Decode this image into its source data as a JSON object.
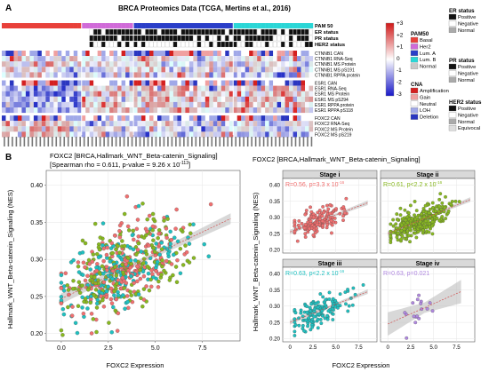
{
  "panel_a": {
    "label": "A",
    "title": "BRCA Proteomics Data (TCGA, Mertins et al., 2016)",
    "track_labels": [
      "PAM 50",
      "ER status",
      "PR status",
      "HER2 status"
    ],
    "row_labels": [
      "CTNNB1 CAN",
      "CTNNB1 RNA-Seq",
      "CTNNB1 MS Protein",
      "CTNNB1 MS pS191",
      "CTNNB1 RPPA protein",
      "ESR1 CAN",
      "ESR1 RNA-Seq",
      "ESR1 MS Protein",
      "ESR1 MS pS294",
      "ESR1 RPPA protein",
      "ESR1 RPPA pS118",
      "FOXC2 CAN",
      "FOXC2 RNA-Seq",
      "FOXC2 MS Protein",
      "FOXC2 MS pS219"
    ],
    "colorbar_ticks": [
      "+3",
      "+2",
      "+1",
      "0",
      "-1",
      "-2",
      "-3"
    ],
    "legends": {
      "pam50": {
        "title": "PAM50",
        "items": [
          {
            "label": "Basal",
            "color": "#e8403a"
          },
          {
            "label": "Her2",
            "color": "#d06ad8"
          },
          {
            "label": "Lum. A",
            "color": "#2a3ec8"
          },
          {
            "label": "Lum. B",
            "color": "#2ad6d6"
          },
          {
            "label": "Normal",
            "color": "#c8c8c8"
          }
        ]
      },
      "cna": {
        "title": "CNA",
        "items": [
          {
            "label": "Amplification",
            "color": "#d42020"
          },
          {
            "label": "Gain",
            "color": "#f0a0a0"
          },
          {
            "label": "Neutral",
            "color": "#ffffff"
          },
          {
            "label": "LOH",
            "color": "#a0a8e8"
          },
          {
            "label": "Deletion",
            "color": "#2a36c0"
          }
        ]
      },
      "er": {
        "title": "ER status",
        "items": [
          {
            "label": "Positive",
            "color": "#111111"
          },
          {
            "label": "Negative",
            "color": "#ffffff"
          },
          {
            "label": "Normal",
            "color": "#aaaaaa"
          }
        ]
      },
      "pr": {
        "title": "PR status",
        "items": [
          {
            "label": "Positive",
            "color": "#111111"
          },
          {
            "label": "Negative",
            "color": "#ffffff"
          },
          {
            "label": "Normal",
            "color": "#aaaaaa"
          }
        ]
      },
      "her2": {
        "title": "HER2 status",
        "items": [
          {
            "label": "Positive",
            "color": "#111111"
          },
          {
            "label": "Negative",
            "color": "#ffffff"
          },
          {
            "label": "Normal",
            "color": "#aaaaaa"
          },
          {
            "label": "Equivocal",
            "color": "#dddddd"
          }
        ]
      }
    }
  },
  "panel_b": {
    "label": "B",
    "left_title": "FOXC2 [BRCA,Hallmark_WNT_Beta-catenin_Signaling]",
    "left_subtitle": "[Spearman rho = 0.611, p-value = 9.26 x 10",
    "left_subtitle_exp": "-113",
    "left_subtitle_end": "]",
    "right_title": "FOXC2 [BRCA,Hallmark_WNT_Beta-catenin_Signaling]",
    "ylabel": "Hallmark_WNT_Beta-catenin_Signaling (NES)",
    "xlabel": "FOXC2 Expression",
    "left_yticks": [
      "0.20",
      "0.25",
      "0.30",
      "0.35",
      "0.40"
    ],
    "left_xticks": [
      "0.0",
      "2.5",
      "5.0",
      "7.5"
    ],
    "right_yticks": [
      "0.20",
      "0.25",
      "0.30",
      "0.35",
      "0.40"
    ],
    "right_xticks": [
      "0",
      "2.5",
      "5.0",
      "7.5"
    ],
    "stages": [
      {
        "title": "Stage i",
        "stat": "R=0.56, p=3.3 x 10",
        "exp": "-16",
        "color": "#f07070"
      },
      {
        "title": "Stage ii",
        "stat": "R=0.61, p<2.2 x 10",
        "exp": "-16",
        "color": "#88b820"
      },
      {
        "title": "Stage iii",
        "stat": "R=0.63, p<2.2 x 10",
        "exp": "-16",
        "color": "#20c0c0"
      },
      {
        "title": "Stage iv",
        "stat": "R=0.63, p=0.021",
        "exp": "",
        "color": "#b088e0"
      }
    ]
  },
  "chart_data": [
    {
      "type": "scatter",
      "title": "FOXC2 [BRCA,Hallmark_WNT_Beta-catenin_Signaling]",
      "xlabel": "FOXC2 Expression",
      "ylabel": "Hallmark_WNT_Beta-catenin_Signaling (NES)",
      "xlim": [
        -0.8,
        9.5
      ],
      "ylim": [
        0.19,
        0.42
      ],
      "spearman_rho": 0.611,
      "fit": {
        "x": [
          0.0,
          9.0
        ],
        "y": [
          0.247,
          0.355
        ]
      },
      "point_colors": [
        "#f07070",
        "#88b820",
        "#20c0c0",
        "#b088e0"
      ]
    },
    {
      "type": "scatter",
      "title": "Stage i",
      "xlim": [
        -0.8,
        9.5
      ],
      "ylim": [
        0.19,
        0.42
      ],
      "R": 0.56,
      "fit": {
        "x": [
          0,
          8.5
        ],
        "y": [
          0.255,
          0.345
        ]
      }
    },
    {
      "type": "scatter",
      "title": "Stage ii",
      "xlim": [
        -0.8,
        9.5
      ],
      "ylim": [
        0.19,
        0.42
      ],
      "R": 0.61,
      "fit": {
        "x": [
          0,
          9.0
        ],
        "y": [
          0.25,
          0.355
        ]
      }
    },
    {
      "type": "scatter",
      "title": "Stage iii",
      "xlim": [
        -0.8,
        9.5
      ],
      "ylim": [
        0.19,
        0.42
      ],
      "R": 0.63,
      "fit": {
        "x": [
          0,
          8.5
        ],
        "y": [
          0.25,
          0.345
        ]
      }
    },
    {
      "type": "scatter",
      "title": "Stage iv",
      "xlim": [
        -0.8,
        9.5
      ],
      "ylim": [
        0.19,
        0.42
      ],
      "R": 0.63,
      "fit": {
        "x": [
          0,
          8.0
        ],
        "y": [
          0.245,
          0.345
        ]
      }
    }
  ]
}
